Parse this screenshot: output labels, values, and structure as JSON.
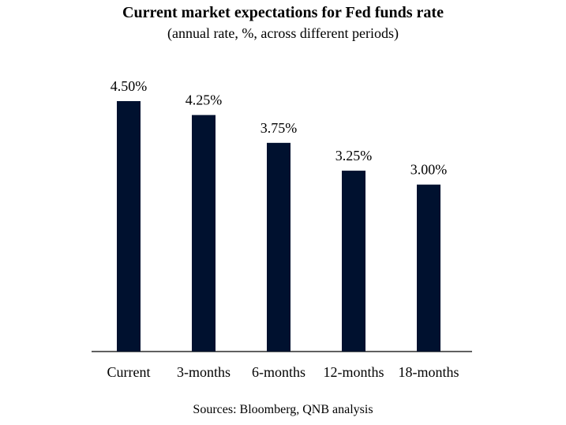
{
  "chart_data": {
    "type": "bar",
    "title": "Current market expectations for Fed funds rate",
    "subtitle": "(annual rate, %, across different periods)",
    "categories": [
      "Current",
      "3-months",
      "6-months",
      "12-months",
      "18-months"
    ],
    "values": [
      4.5,
      4.25,
      3.75,
      3.25,
      3.0
    ],
    "value_labels": [
      "4.50%",
      "4.25%",
      "3.75%",
      "3.25%",
      "3.00%"
    ],
    "xlabel": "",
    "ylabel": "",
    "ylim": [
      0,
      4.5
    ],
    "grid": false,
    "legend": "none",
    "bar_color": "#00112f",
    "source": "Sources: Bloomberg, QNB analysis"
  }
}
